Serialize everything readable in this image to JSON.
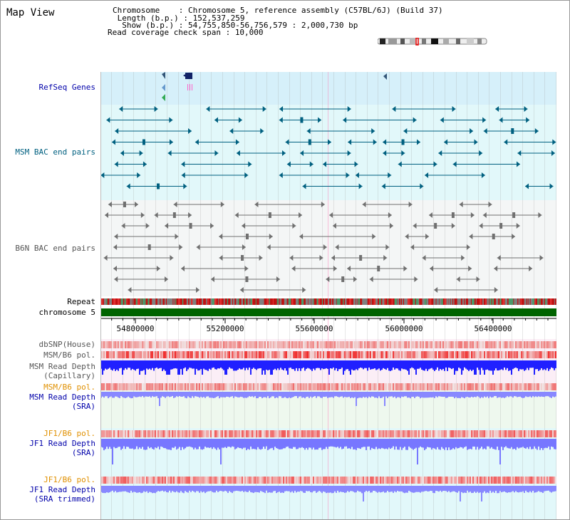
{
  "title": "Map View",
  "info": {
    "chromosome_label": "Chromosome    : ",
    "chromosome_value": "Chromosome 5, reference assembly (C57BL/6J) (Build 37)",
    "length_label": " Length (b.p.) : ",
    "length_value": "152,537,259",
    "show_label": "  Show (b.p.) : ",
    "show_value": "54,755,850-56,756,579 : 2,000,730 bp",
    "span_label": "Read coverage check span : ",
    "span_value": "10,000"
  },
  "tracks": {
    "refseq": "RefSeq Genes",
    "msm_bac": "MSM BAC end pairs",
    "b6n_bac": "B6N BAC end pairs",
    "repeat": "Repeat",
    "chromosome": "chromosome 5",
    "dbsnp": "dbSNP(House)",
    "msm_b6_pol_1": "MSM/B6 pol.",
    "msm_depth_cap_1": "MSM Read Depth",
    "msm_depth_cap_2": "(Capillary)",
    "msm_b6_pol_2": "MSM/B6 pol.",
    "msm_depth_sra_1": "MSM Read Depth",
    "msm_depth_sra_2": "(SRA)",
    "jf1_b6_pol_1": "JF1/B6 pol.",
    "jf1_depth_sra_1": "JF1 Read Depth",
    "jf1_depth_sra_2": "(SRA)",
    "jf1_b6_pol_2": "JF1/B6 pol.",
    "jf1_depth_trim_1": "JF1 Read Depth",
    "jf1_depth_trim_2": "(SRA trimmed)"
  },
  "axis": {
    "ticks": [
      "54800000",
      "55200000",
      "55600000",
      "56000000",
      "56400000"
    ]
  },
  "colors": {
    "refseq_bg": "#d6f0fa",
    "msm_bg": "#e2f8fa",
    "b6n_bg": "#f4f6f6",
    "chromosome": "#006400",
    "msm_glyph": "#006080",
    "b6n_glyph": "#707070",
    "pol_red": "#e83030",
    "depth_blue": "#2020ff",
    "depth_light": "#8888ff"
  }
}
